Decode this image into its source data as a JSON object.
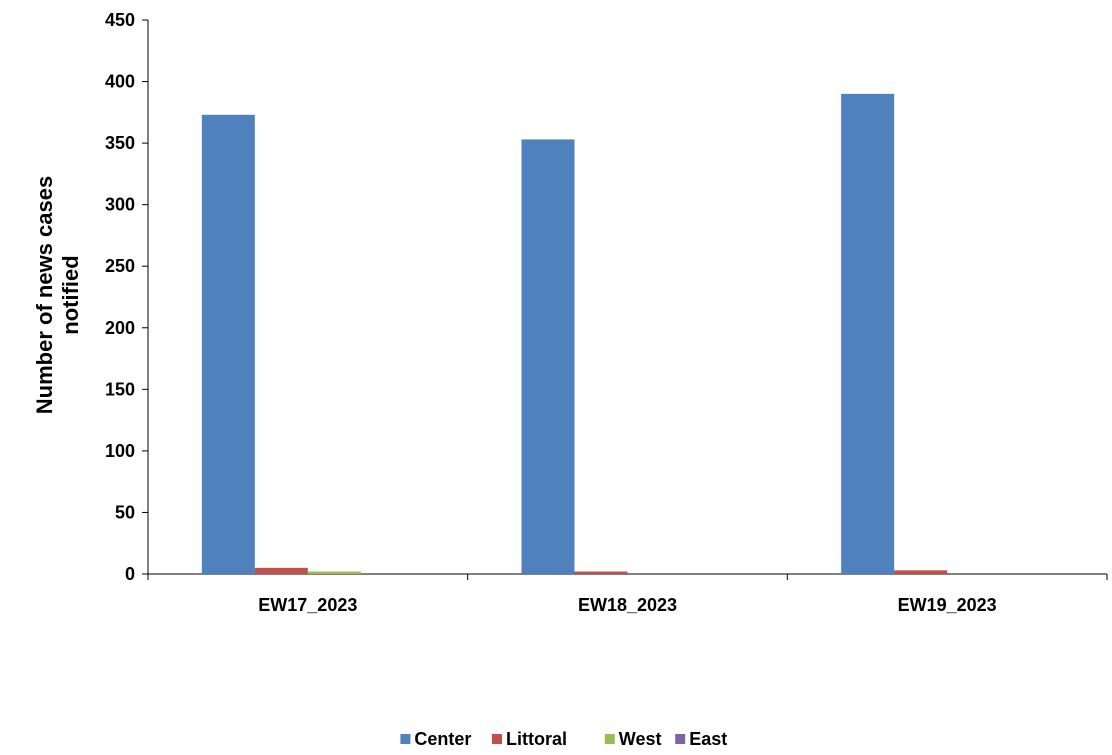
{
  "chart_data": {
    "type": "bar",
    "title": "",
    "xlabel": "",
    "ylabel": "Number of news cases notified",
    "ylabel_lines": [
      "Number of news cases",
      "notified"
    ],
    "categories": [
      "EW17_2023",
      "EW18_2023",
      "EW19_2023"
    ],
    "series": [
      {
        "name": "Center",
        "color": "#4F81BD",
        "values": [
          373,
          353,
          390
        ]
      },
      {
        "name": "Littoral",
        "color": "#C0504D",
        "values": [
          5,
          2,
          3
        ]
      },
      {
        "name": "West",
        "color": "#9BBB59",
        "values": [
          2,
          0,
          0
        ]
      },
      {
        "name": "East",
        "color": "#8064A2",
        "values": [
          0,
          0,
          0
        ]
      }
    ],
    "ylim": [
      0,
      450
    ],
    "yticks": [
      0,
      50,
      100,
      150,
      200,
      250,
      300,
      350,
      400,
      450
    ],
    "grid": false,
    "legend_position": "bottom"
  }
}
